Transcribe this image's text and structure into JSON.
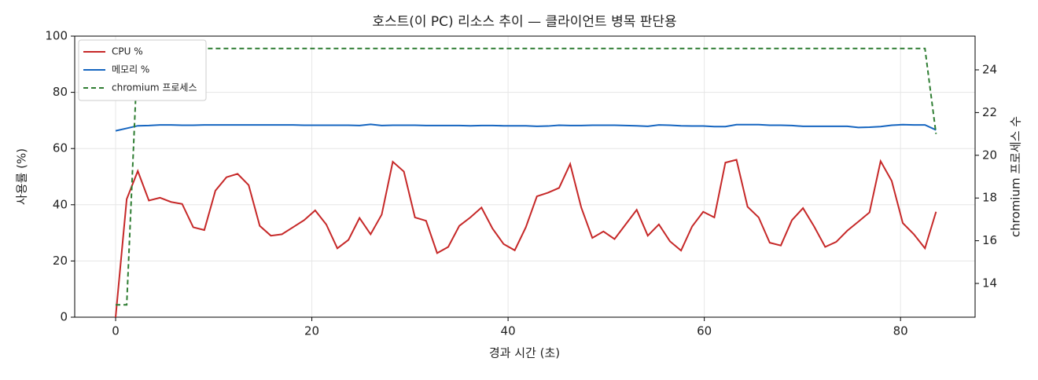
{
  "chart_data": {
    "type": "line",
    "title": "호스트(이 PC) 리소스 추이 — 클라이언트 병목 판단용",
    "x_label": "경과 시간 (초)",
    "y_label": "사용률 (%)",
    "y2_label": "chromium 프로세스 수",
    "x": [
      0,
      1.13,
      2.26,
      3.39,
      4.52,
      5.65,
      6.78,
      7.91,
      9.04,
      10.17,
      11.3,
      12.43,
      13.56,
      14.69,
      15.82,
      16.95,
      18.08,
      19.21,
      20.34,
      21.47,
      22.6,
      23.73,
      24.86,
      25.99,
      27.12,
      28.25,
      29.38,
      30.51,
      31.64,
      32.77,
      33.9,
      35.03,
      36.16,
      37.29,
      38.42,
      39.55,
      40.68,
      41.81,
      42.94,
      44.07,
      45.2,
      46.33,
      47.46,
      48.59,
      49.72,
      50.85,
      51.98,
      53.11,
      54.24,
      55.37,
      56.5,
      57.63,
      58.76,
      59.89,
      61.02,
      62.15,
      63.28,
      64.41,
      65.54,
      66.67,
      67.8,
      68.93,
      70.06,
      71.19,
      72.32,
      73.45,
      74.58,
      75.71,
      76.84,
      77.97,
      79.1,
      80.23,
      81.36,
      82.49,
      83.62
    ],
    "series": [
      {
        "name": "CPU %",
        "color": "#c62828",
        "dash": false,
        "values": [
          0,
          42,
          52,
          41.5,
          42.5,
          41,
          40.3,
          32,
          31,
          45,
          49.8,
          51,
          47,
          32.5,
          29,
          29.5,
          32,
          34.5,
          38,
          33,
          24.5,
          27.5,
          35.3,
          29.5,
          36.5,
          55.3,
          51.8,
          35.5,
          34.3,
          22.8,
          25,
          32.5,
          35.5,
          39,
          31.5,
          26,
          23.8,
          32,
          43,
          44.3,
          46,
          54.5,
          39,
          28.2,
          30.5,
          27.8,
          33,
          38.2,
          29,
          33,
          27,
          23.7,
          32.3,
          37.5,
          35.5,
          55,
          56,
          39.3,
          35.5,
          26.5,
          25.5,
          34.5,
          38.8,
          32.3,
          25,
          26.8,
          30.8,
          34,
          37.3,
          55.5,
          48.5,
          33.5,
          29.5,
          24.5,
          37.5
        ]
      },
      {
        "name": "메모리 %",
        "color": "#1565c0",
        "dash": false,
        "values": [
          66.3,
          67.2,
          68.1,
          68.2,
          68.4,
          68.4,
          68.3,
          68.3,
          68.4,
          68.4,
          68.4,
          68.4,
          68.4,
          68.4,
          68.4,
          68.4,
          68.4,
          68.3,
          68.3,
          68.3,
          68.3,
          68.3,
          68.2,
          68.6,
          68.2,
          68.3,
          68.3,
          68.3,
          68.2,
          68.2,
          68.2,
          68.2,
          68.1,
          68.2,
          68.2,
          68.1,
          68.1,
          68.1,
          67.9,
          68.0,
          68.3,
          68.2,
          68.2,
          68.3,
          68.3,
          68.3,
          68.2,
          68.1,
          67.9,
          68.4,
          68.3,
          68.1,
          68.0,
          68.0,
          67.8,
          67.8,
          68.5,
          68.5,
          68.5,
          68.3,
          68.3,
          68.2,
          67.9,
          67.9,
          67.9,
          67.9,
          67.9,
          67.5,
          67.6,
          67.8,
          68.3,
          68.5,
          68.4,
          68.4,
          66.6
        ]
      },
      {
        "name": "chromium 프로세스",
        "color": "#2e7d32",
        "dash": true,
        "axis": "y2",
        "values": [
          13,
          13,
          25,
          25,
          25,
          25,
          25,
          25,
          25,
          25,
          25,
          25,
          25,
          25,
          25,
          25,
          25,
          25,
          25,
          25,
          25,
          25,
          25,
          25,
          25,
          25,
          25,
          25,
          25,
          25,
          25,
          25,
          25,
          25,
          25,
          25,
          25,
          25,
          25,
          25,
          25,
          25,
          25,
          25,
          25,
          25,
          25,
          25,
          25,
          25,
          25,
          25,
          25,
          25,
          25,
          25,
          25,
          25,
          25,
          25,
          25,
          25,
          25,
          25,
          25,
          25,
          25,
          25,
          25,
          25,
          25,
          25,
          25,
          25,
          21
        ]
      }
    ],
    "xlim": [
      -4.17,
      87.6
    ],
    "xticks": [
      0,
      20,
      40,
      60,
      80
    ],
    "ylim": [
      0,
      100
    ],
    "yticks": [
      0,
      20,
      40,
      60,
      80,
      100
    ],
    "y2lim": [
      12.42,
      25.58
    ],
    "y2ticks": [
      14,
      16,
      18,
      20,
      22,
      24
    ],
    "grid": true,
    "legend": "upper-left"
  }
}
